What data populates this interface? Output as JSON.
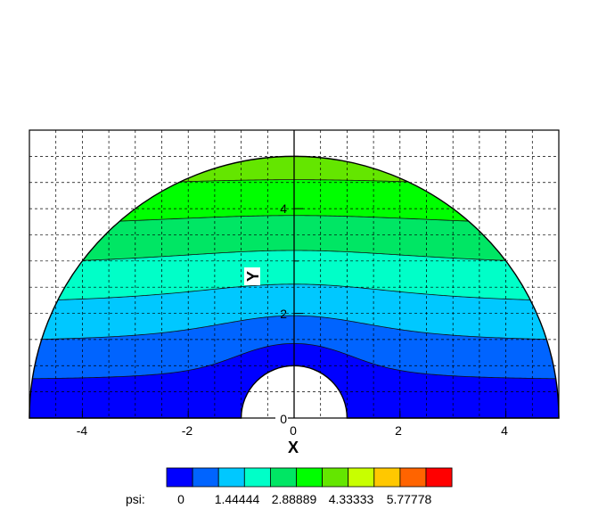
{
  "chart_data": {
    "type": "heatmap",
    "subtype": "contour",
    "title": "",
    "xlabel": "X",
    "ylabel": "Y",
    "xlim": [
      -5,
      5
    ],
    "ylim": [
      0,
      5.5
    ],
    "x_ticks": [
      -4,
      -2,
      0,
      2,
      4
    ],
    "x_tick_labels": [
      "-4",
      "-2",
      "0",
      "2",
      "4"
    ],
    "y_ticks": [
      0,
      2,
      4
    ],
    "y_tick_labels": [
      "0",
      "2",
      "4"
    ],
    "grid": true,
    "grid_style": "dashed",
    "domain": {
      "shape": "half-annulus",
      "outer_radius": 5,
      "inner_radius": 1
    },
    "contour_levels": [
      0,
      0.722222,
      1.44444,
      2.16667,
      2.88889,
      3.61111,
      4.33333,
      5.05556,
      5.77778,
      6.5,
      7.22222
    ],
    "legend": {
      "title": "psi:",
      "tick_labels": [
        "0",
        "1.44444",
        "2.88889",
        "4.33333",
        "5.77778"
      ],
      "colors": [
        "#0000ff",
        "#0064ff",
        "#00c8ff",
        "#00ffc8",
        "#00e664",
        "#00ff00",
        "#64e600",
        "#c8ff00",
        "#ffc800",
        "#ff6400",
        "#ff0000"
      ]
    }
  }
}
